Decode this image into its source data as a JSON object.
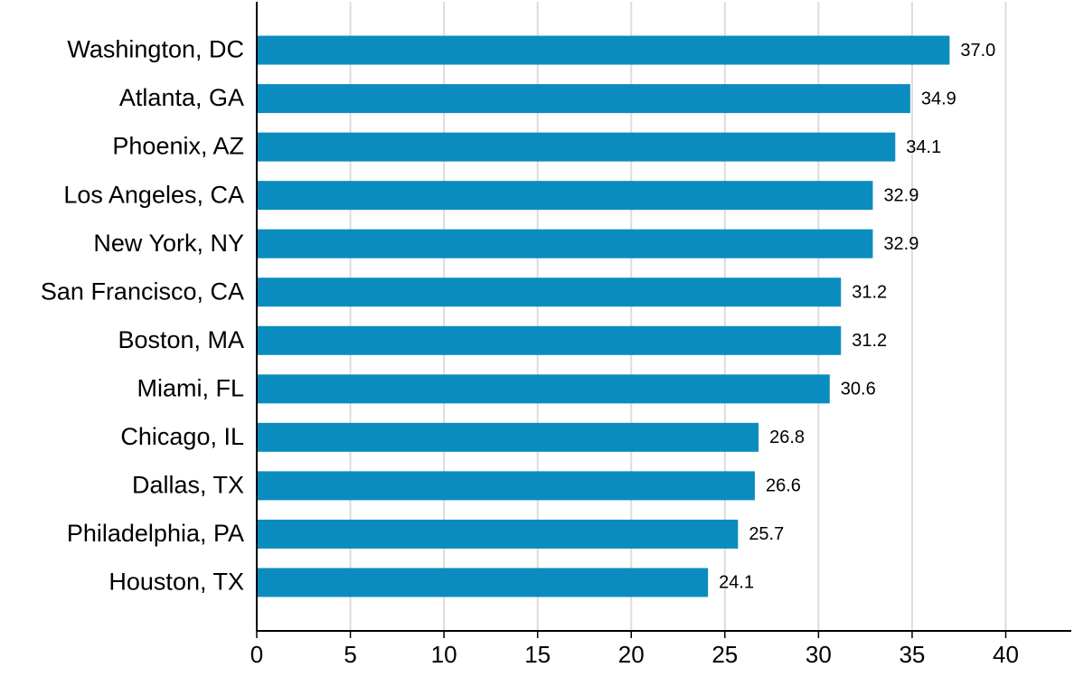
{
  "chart_data": {
    "type": "bar",
    "orientation": "horizontal",
    "categories": [
      "Washington, DC",
      "Atlanta, GA",
      "Phoenix, AZ",
      "Los Angeles, CA",
      "New York, NY",
      "San Francisco, CA",
      "Boston, MA",
      "Miami, FL",
      "Chicago, IL",
      "Dallas, TX",
      "Philadelphia, PA",
      "Houston, TX"
    ],
    "values": [
      37.0,
      34.9,
      34.1,
      32.9,
      32.9,
      31.2,
      31.2,
      30.6,
      26.8,
      26.6,
      25.7,
      24.1
    ],
    "value_labels": [
      "37.0",
      "34.9",
      "34.1",
      "32.9",
      "32.9",
      "31.2",
      "31.2",
      "30.6",
      "26.8",
      "26.6",
      "25.7",
      "24.1"
    ],
    "color": "#0b8cbf",
    "xlim": [
      0,
      43.5
    ],
    "xticks": [
      0,
      5,
      10,
      15,
      20,
      25,
      30,
      35,
      40
    ],
    "grid": true
  }
}
